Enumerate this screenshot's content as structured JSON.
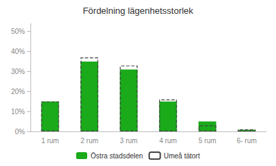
{
  "chart_data": {
    "type": "bar",
    "title": "Fördelning lägenhetsstorlek",
    "categories": [
      "1 rum",
      "2 rum",
      "3 rum",
      "4 rum",
      "5 rum",
      "6- rum"
    ],
    "series": [
      {
        "name": "Östra stadsdelen",
        "color": "#1aaa1a",
        "values": [
          15,
          35,
          31,
          15,
          5,
          0.8
        ]
      },
      {
        "name": "Umeå tätort",
        "color": "#444444",
        "line_style": "dashed",
        "values": [
          15,
          37,
          33,
          16,
          3,
          1
        ]
      }
    ],
    "ylim": [
      0,
      54
    ],
    "yticks": [
      {
        "value": 0,
        "label": "0%"
      },
      {
        "value": 10,
        "label": "10%"
      },
      {
        "value": 20,
        "label": "20%"
      },
      {
        "value": 30,
        "label": "30%"
      },
      {
        "value": 40,
        "label": "40%"
      },
      {
        "value": 50,
        "label": "50%"
      }
    ],
    "grid": false,
    "legend": "bottom"
  }
}
